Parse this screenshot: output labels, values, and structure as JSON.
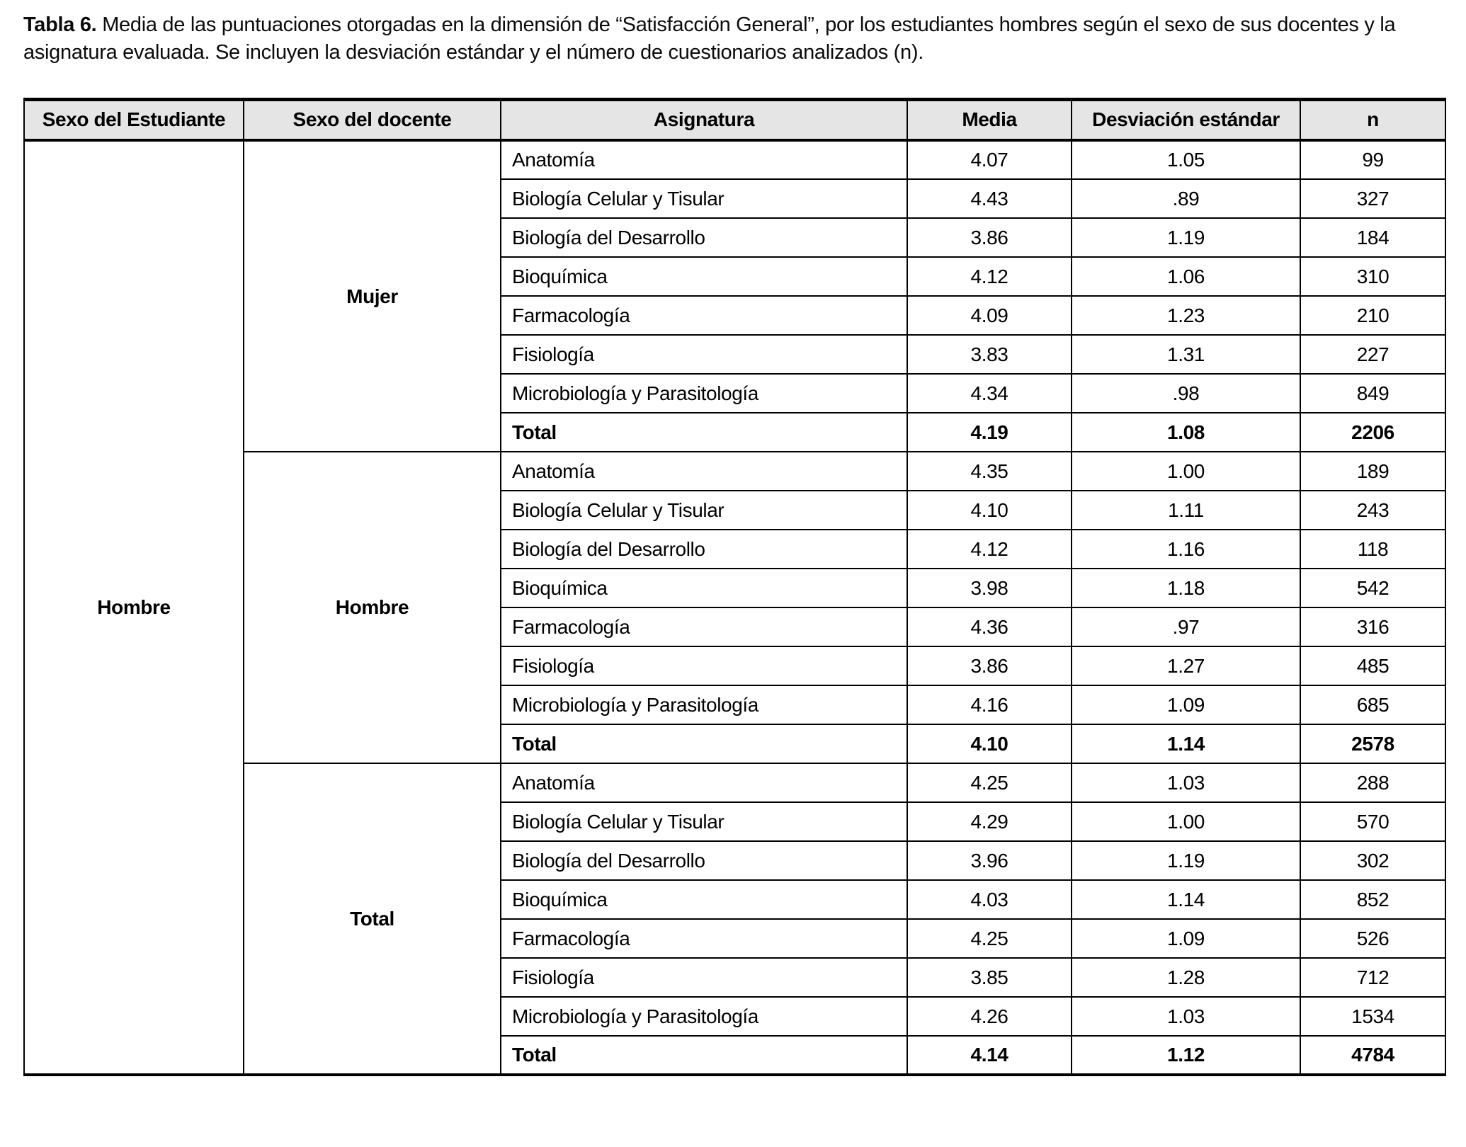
{
  "caption": {
    "label": "Tabla 6.",
    "text": " Media de las puntuaciones otorgadas en la dimensión de “Satisfacción General”, por los estudiantes hombres según el sexo de sus docentes y la asignatura evaluada. Se incluyen la desviación estándar y el número de cuestionarios analizados (n)."
  },
  "colors": {
    "row_shade": "#e5e5e5",
    "border": "#000000"
  },
  "table": {
    "headers": [
      "Sexo del Estudiante",
      "Sexo del docente",
      "Asignatura",
      "Media",
      "Desviación estándar",
      "n"
    ],
    "student_sex": "Hombre",
    "groups": [
      {
        "teacher_sex": "Mujer",
        "rows": [
          {
            "subject": "Anatomía",
            "media": "4.07",
            "sd": "1.05",
            "n": "99"
          },
          {
            "subject": "Biología Celular y Tisular",
            "media": "4.43",
            "sd": ".89",
            "n": "327"
          },
          {
            "subject": "Biología del Desarrollo",
            "media": "3.86",
            "sd": "1.19",
            "n": "184"
          },
          {
            "subject": "Bioquímica",
            "media": "4.12",
            "sd": "1.06",
            "n": "310"
          },
          {
            "subject": "Farmacología",
            "media": "4.09",
            "sd": "1.23",
            "n": "210"
          },
          {
            "subject": "Fisiología",
            "media": "3.83",
            "sd": "1.31",
            "n": "227"
          },
          {
            "subject": "Microbiología y Parasitología",
            "media": "4.34",
            "sd": ".98",
            "n": "849"
          },
          {
            "subject": "Total",
            "media": "4.19",
            "sd": "1.08",
            "n": "2206"
          }
        ]
      },
      {
        "teacher_sex": "Hombre",
        "rows": [
          {
            "subject": "Anatomía",
            "media": "4.35",
            "sd": "1.00",
            "n": "189"
          },
          {
            "subject": "Biología Celular y Tisular",
            "media": "4.10",
            "sd": "1.11",
            "n": "243"
          },
          {
            "subject": "Biología del Desarrollo",
            "media": "4.12",
            "sd": "1.16",
            "n": "118"
          },
          {
            "subject": "Bioquímica",
            "media": "3.98",
            "sd": "1.18",
            "n": "542"
          },
          {
            "subject": "Farmacología",
            "media": "4.36",
            "sd": ".97",
            "n": "316"
          },
          {
            "subject": "Fisiología",
            "media": "3.86",
            "sd": "1.27",
            "n": "485"
          },
          {
            "subject": "Microbiología y Parasitología",
            "media": "4.16",
            "sd": "1.09",
            "n": "685"
          },
          {
            "subject": "Total",
            "media": "4.10",
            "sd": "1.14",
            "n": "2578"
          }
        ]
      },
      {
        "teacher_sex": "Total",
        "rows": [
          {
            "subject": "Anatomía",
            "media": "4.25",
            "sd": "1.03",
            "n": "288"
          },
          {
            "subject": "Biología Celular y Tisular",
            "media": "4.29",
            "sd": "1.00",
            "n": "570"
          },
          {
            "subject": "Biología del Desarrollo",
            "media": "3.96",
            "sd": "1.19",
            "n": "302"
          },
          {
            "subject": "Bioquímica",
            "media": "4.03",
            "sd": "1.14",
            "n": "852"
          },
          {
            "subject": "Farmacología",
            "media": "4.25",
            "sd": "1.09",
            "n": "526"
          },
          {
            "subject": "Fisiología",
            "media": "3.85",
            "sd": "1.28",
            "n": "712"
          },
          {
            "subject": "Microbiología y Parasitología",
            "media": "4.26",
            "sd": "1.03",
            "n": "1534"
          },
          {
            "subject": "Total",
            "media": "4.14",
            "sd": "1.12",
            "n": "4784"
          }
        ]
      }
    ]
  }
}
